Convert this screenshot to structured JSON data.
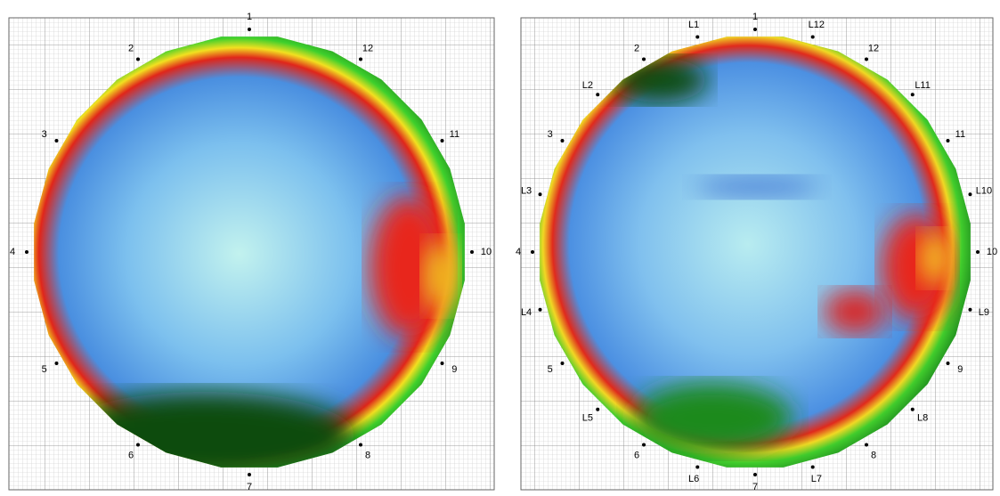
{
  "panels": [
    {
      "points": [
        "1",
        "2",
        "3",
        "4",
        "5",
        "6",
        "7",
        "8",
        "9",
        "10",
        "11",
        "12"
      ]
    },
    {
      "points": [
        "1",
        "2",
        "3",
        "4",
        "5",
        "6",
        "7",
        "8",
        "9",
        "10",
        "11",
        "12"
      ],
      "l_points": [
        "L1",
        "L2",
        "L3",
        "L4",
        "L5",
        "L6",
        "L7",
        "L8",
        "L9",
        "L10",
        "L11",
        "L12"
      ]
    }
  ]
}
